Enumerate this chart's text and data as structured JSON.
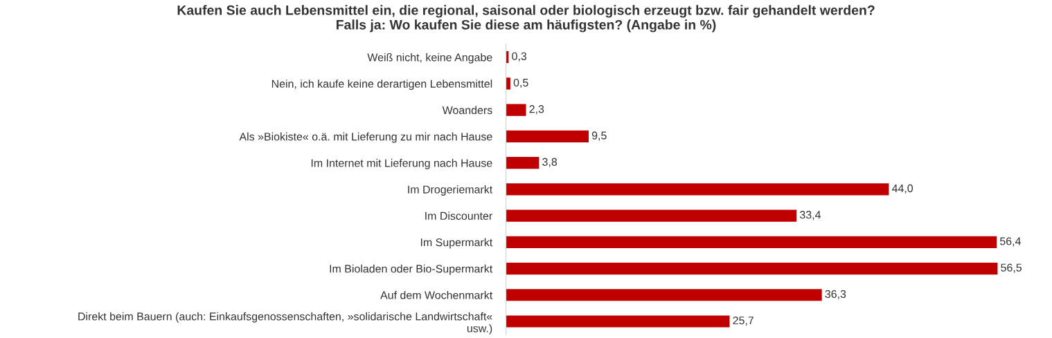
{
  "chart_data": {
    "type": "bar",
    "orientation": "horizontal",
    "title": "Kaufen Sie auch Lebensmittel ein, die regional, saisonal oder biologisch erzeugt bzw. fair gehandelt werden?\nFalls ja: Wo kaufen Sie diese am häufigsten? (Angabe in %)",
    "categories": [
      "Weiß nicht, keine Angabe",
      "Nein, ich kaufe keine derartigen Lebensmittel",
      "Woanders",
      "Als »Biokiste« o.ä. mit Lieferung zu mir nach Hause",
      "Im Internet mit Lieferung nach Hause",
      "Im Drogeriemarkt",
      "Im Discounter",
      "Im Supermarkt",
      "Im Bioladen oder Bio-Supermarkt",
      "Auf dem Wochenmarkt",
      "Direkt beim Bauern (auch: Einkaufsgenossenschaften, »solidarische Landwirtschaft«\nusw.)"
    ],
    "values": [
      0.3,
      0.5,
      2.3,
      9.5,
      3.8,
      44.0,
      33.4,
      56.4,
      56.5,
      36.3,
      25.7
    ],
    "value_labels": [
      "0,3",
      "0,5",
      "2,3",
      "9,5",
      "3,8",
      "44,0",
      "33,4",
      "56,4",
      "56,5",
      "36,3",
      "25,7"
    ],
    "color": "#c00000",
    "grid": false,
    "legend": false,
    "tick_labels": "y"
  }
}
